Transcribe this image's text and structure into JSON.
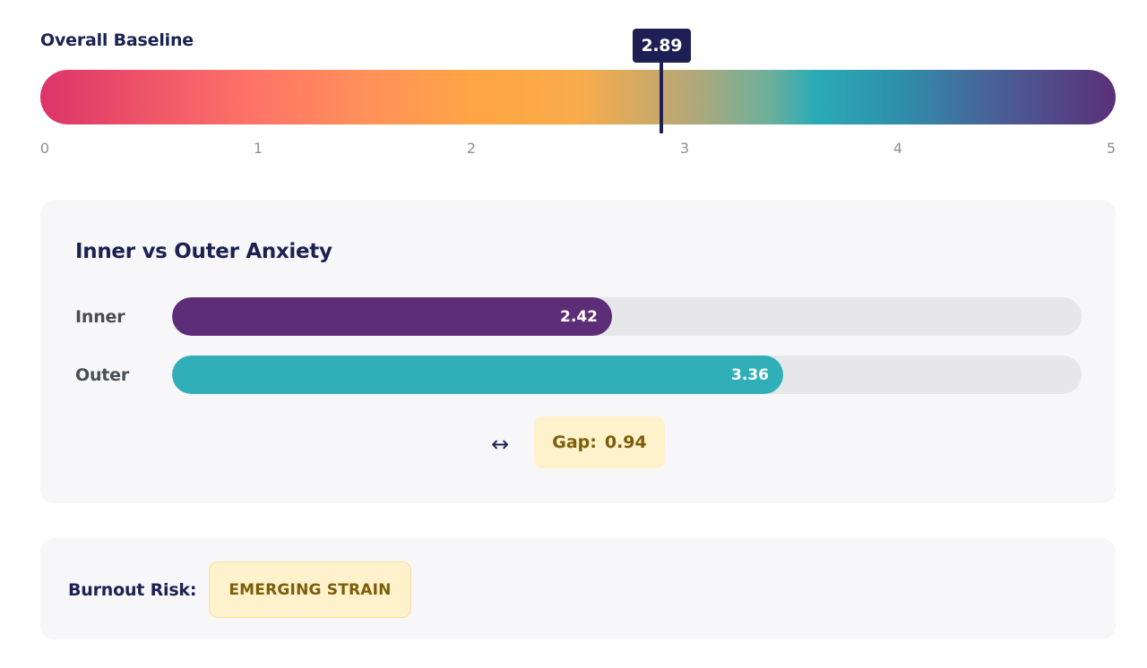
{
  "baseline": {
    "title": "Overall Baseline",
    "value": 2.89,
    "value_label": "2.89",
    "scale_min": 0,
    "scale_max": 5,
    "ticks": [
      "0",
      "1",
      "2",
      "3",
      "4",
      "5"
    ],
    "gradient_colors": [
      "#dc3469",
      "#ff7467",
      "#ffa545",
      "#2aabb6",
      "#5b2f78"
    ],
    "marker_color": "#1e1f55"
  },
  "anxiety": {
    "title": "Inner vs Outer Anxiety",
    "scale_max": 5,
    "rows": [
      {
        "label": "Inner",
        "value": 2.42,
        "value_label": "2.42",
        "color": "#5d2d78"
      },
      {
        "label": "Outer",
        "value": 3.36,
        "value_label": "3.36",
        "color": "#31afb8"
      }
    ],
    "gap": {
      "icon": "left-right-arrow-icon",
      "label": "Gap:",
      "value": "0.94"
    }
  },
  "burnout": {
    "label": "Burnout Risk:",
    "status": "EMERGING STRAIN",
    "status_color": "#7c5d09"
  }
}
